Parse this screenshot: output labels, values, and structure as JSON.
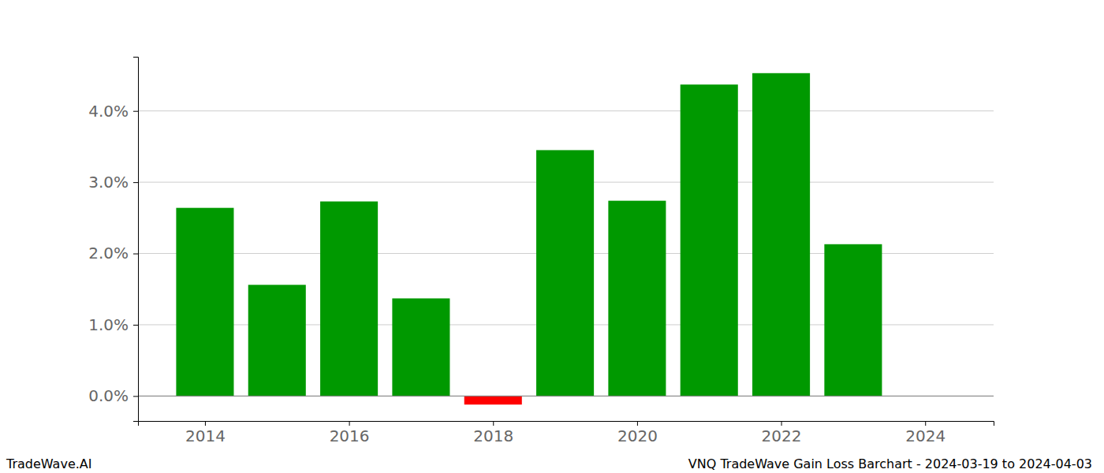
{
  "chart_data": {
    "type": "bar",
    "title": "VNQ TradeWave Gain Loss Barchart - 2024-03-19 to 2024-04-03",
    "annotations": [
      "TradeWave.AI"
    ],
    "x": [
      2014,
      2015,
      2016,
      2017,
      2018,
      2019,
      2020,
      2021,
      2022,
      2023
    ],
    "values": [
      2.64,
      1.56,
      2.73,
      1.37,
      -0.12,
      3.45,
      2.74,
      4.37,
      4.53,
      2.13
    ],
    "colors": [
      "#009900",
      "#009900",
      "#009900",
      "#009900",
      "#ff0000",
      "#009900",
      "#009900",
      "#009900",
      "#009900",
      "#009900"
    ],
    "xlim": [
      2013.07,
      2024.95
    ],
    "xticks": [
      2014,
      2016,
      2018,
      2020,
      2022,
      2024
    ],
    "ylim": [
      -0.35,
      4.76
    ],
    "yticks": [
      {
        "value": 0,
        "label": "0.0%"
      },
      {
        "value": 1,
        "label": "1.0%"
      },
      {
        "value": 2,
        "label": "2.0%"
      },
      {
        "value": 3,
        "label": "3.0%"
      },
      {
        "value": 4,
        "label": "4.0%"
      }
    ],
    "grid": true
  }
}
